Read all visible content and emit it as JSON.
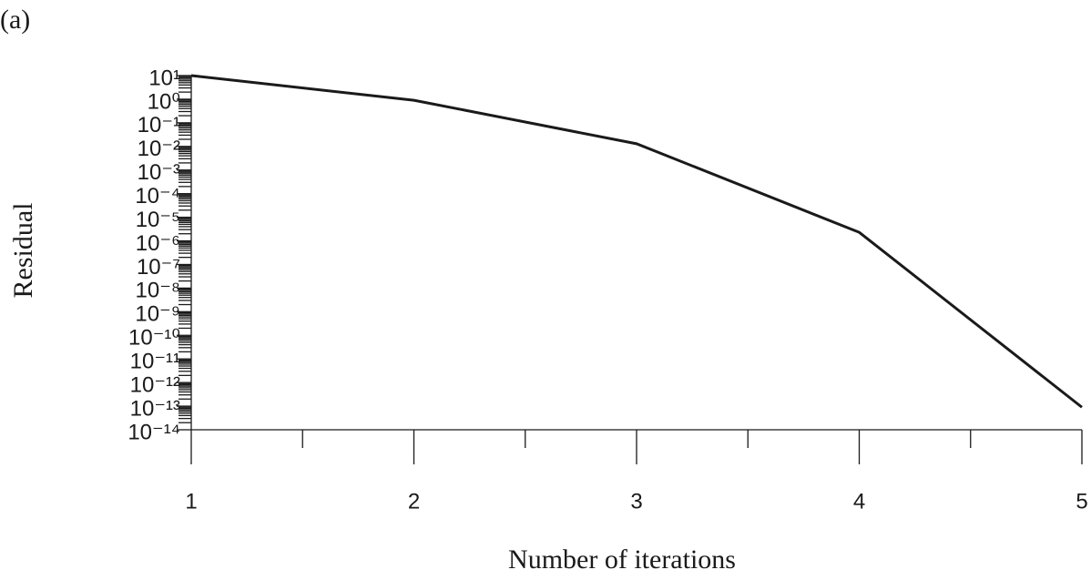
{
  "chart_data": {
    "type": "line",
    "panel_label": "(a)",
    "x_label": "Number of iterations",
    "y_label": "Residual",
    "x": [
      1,
      2,
      3,
      4,
      5
    ],
    "series": [
      {
        "name": null,
        "color": "#1a1a1a",
        "values": [
          10,
          0.9,
          0.013,
          2.3e-06,
          9e-14
        ]
      }
    ],
    "xlim": [
      1,
      5
    ],
    "xticks": [
      1,
      2,
      3,
      4,
      5
    ],
    "ylim": [
      1e-14,
      10
    ],
    "log_y": true,
    "yticks": [
      {
        "value": 10,
        "label": "10¹"
      },
      {
        "value": 1,
        "label": "10⁰"
      },
      {
        "value": 0.1,
        "label": "10⁻¹"
      },
      {
        "value": 0.01,
        "label": "10⁻²"
      },
      {
        "value": 0.001,
        "label": "10⁻³"
      },
      {
        "value": 0.0001,
        "label": "10⁻⁴"
      },
      {
        "value": 1e-05,
        "label": "10⁻⁵"
      },
      {
        "value": 1e-06,
        "label": "10⁻⁶"
      },
      {
        "value": 1e-07,
        "label": "10⁻⁷"
      },
      {
        "value": 1e-08,
        "label": "10⁻⁸"
      },
      {
        "value": 1e-09,
        "label": "10⁻⁹"
      },
      {
        "value": 1e-10,
        "label": "10⁻¹⁰"
      },
      {
        "value": 1e-11,
        "label": "10⁻¹¹"
      },
      {
        "value": 1e-12,
        "label": "10⁻¹²"
      },
      {
        "value": 1e-13,
        "label": "10⁻¹³"
      },
      {
        "value": 1e-14,
        "label": "10⁻¹⁴"
      }
    ]
  }
}
